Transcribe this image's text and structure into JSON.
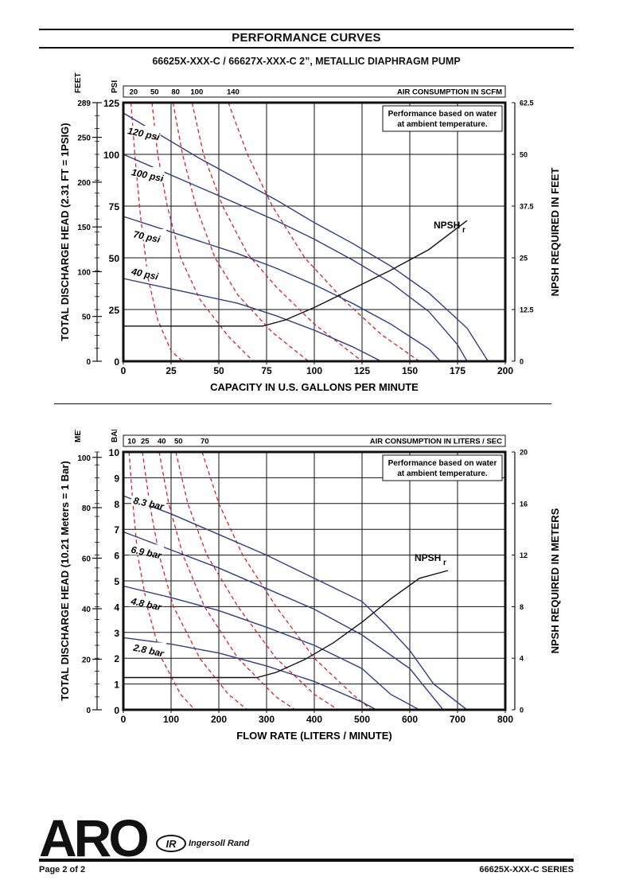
{
  "header": {
    "title": "PERFORMANCE CURVES",
    "subtitle": "66625X-XXX-C / 66627X-XXX-C 2”, METALLIC DIAPHRAGM PUMP"
  },
  "chart_data": [
    {
      "type": "line",
      "xlabel": "CAPACITY IN U.S. GALLONS PER MINUTE",
      "ylabel": "TOTAL DISCHARGE HEAD (2.31 FT = 1PSIG)",
      "y_outer_unit": "FEET",
      "y_inner_unit": "PSI",
      "y2label": "NPSH REQUIRED IN FEET",
      "air_label": "AIR CONSUMPTION IN SCFM",
      "note": [
        "Performance based on water",
        "at ambient temperature."
      ],
      "xlim": [
        0,
        200
      ],
      "ylim": [
        0,
        125
      ],
      "x_ticks": [
        "0",
        "25",
        "50",
        "75",
        "100",
        "125",
        "150",
        "175",
        "200"
      ],
      "y_ticks": [
        "0",
        "25",
        "50",
        "75",
        "100",
        "125"
      ],
      "y_outer_ticks": [
        {
          "v": 0,
          "t": "0"
        },
        {
          "v": 21.65,
          "t": "50"
        },
        {
          "v": 43.3,
          "t": "100"
        },
        {
          "v": 64.94,
          "t": "150"
        },
        {
          "v": 86.58,
          "t": "200"
        },
        {
          "v": 108.23,
          "t": "250"
        },
        {
          "v": 125,
          "t": "289"
        }
      ],
      "y2_ticks": [
        {
          "v": 0,
          "t": "0"
        },
        {
          "v": 25,
          "t": "12.5"
        },
        {
          "v": 50,
          "t": "25"
        },
        {
          "v": 75,
          "t": "37.5"
        },
        {
          "v": 100,
          "t": "50"
        },
        {
          "v": 125,
          "t": "62.5"
        }
      ],
      "air_ticks": [
        {
          "x": 4,
          "t": "20"
        },
        {
          "x": 15,
          "t": "50"
        },
        {
          "x": 26,
          "t": "80"
        },
        {
          "x": 36,
          "t": "100"
        },
        {
          "x": 55,
          "t": "140"
        }
      ],
      "npsh_label": "NPSH",
      "npsh_sub": "r",
      "series": [
        {
          "name": "120 psi",
          "label_xy": [
            2,
            110
          ],
          "points": [
            [
              0,
              120
            ],
            [
              20,
              109
            ],
            [
              40,
              98
            ],
            [
              60,
              88
            ],
            [
              80,
              78
            ],
            [
              100,
              67
            ],
            [
              120,
              57
            ],
            [
              140,
              46
            ],
            [
              160,
              33
            ],
            [
              180,
              16
            ],
            [
              191,
              0
            ]
          ]
        },
        {
          "name": "100 psi",
          "label_xy": [
            4,
            90
          ],
          "points": [
            [
              0,
              100
            ],
            [
              20,
              92
            ],
            [
              40,
              84
            ],
            [
              60,
              76
            ],
            [
              80,
              68
            ],
            [
              100,
              59
            ],
            [
              120,
              49
            ],
            [
              140,
              38
            ],
            [
              160,
              24
            ],
            [
              175,
              8
            ],
            [
              180,
              0
            ]
          ]
        },
        {
          "name": "70 psi",
          "label_xy": [
            5,
            60
          ],
          "points": [
            [
              0,
              70
            ],
            [
              20,
              64
            ],
            [
              40,
              58
            ],
            [
              60,
              52
            ],
            [
              80,
              45
            ],
            [
              100,
              37
            ],
            [
              120,
              28
            ],
            [
              140,
              18
            ],
            [
              160,
              6
            ],
            [
              166,
              0
            ]
          ]
        },
        {
          "name": "40 psi",
          "label_xy": [
            4,
            42
          ],
          "points": [
            [
              0,
              40
            ],
            [
              20,
              36
            ],
            [
              40,
              32
            ],
            [
              60,
              28
            ],
            [
              80,
              22
            ],
            [
              100,
              15
            ],
            [
              120,
              7
            ],
            [
              135,
              0
            ]
          ]
        }
      ],
      "air_curves": [
        {
          "points": [
            [
              4,
              125
            ],
            [
              6,
              100
            ],
            [
              9,
              70
            ],
            [
              13,
              40
            ],
            [
              18,
              20
            ],
            [
              25,
              5
            ],
            [
              31,
              0
            ]
          ]
        },
        {
          "points": [
            [
              15,
              125
            ],
            [
              18,
              100
            ],
            [
              23,
              75
            ],
            [
              30,
              50
            ],
            [
              40,
              30
            ],
            [
              55,
              12
            ],
            [
              68,
              0
            ]
          ]
        },
        {
          "points": [
            [
              26,
              125
            ],
            [
              31,
              100
            ],
            [
              38,
              75
            ],
            [
              48,
              50
            ],
            [
              60,
              32
            ],
            [
              78,
              14
            ],
            [
              97,
              0
            ]
          ]
        },
        {
          "points": [
            [
              36,
              125
            ],
            [
              42,
              100
            ],
            [
              52,
              75
            ],
            [
              65,
              52
            ],
            [
              80,
              36
            ],
            [
              100,
              18
            ],
            [
              125,
              0
            ]
          ]
        },
        {
          "points": [
            [
              55,
              125
            ],
            [
              65,
              100
            ],
            [
              78,
              75
            ],
            [
              95,
              50
            ],
            [
              115,
              30
            ],
            [
              135,
              13
            ],
            [
              155,
              0
            ]
          ]
        }
      ],
      "npsh_curve": {
        "points": [
          [
            0,
            17
          ],
          [
            73,
            17
          ],
          [
            85,
            20
          ],
          [
            100,
            26
          ],
          [
            120,
            35
          ],
          [
            140,
            44
          ],
          [
            160,
            54
          ],
          [
            180,
            68
          ]
        ]
      }
    },
    {
      "type": "line",
      "xlabel": "FLOW RATE (LITERS / MINUTE)",
      "ylabel": "TOTAL DISCHARGE HEAD (10.21 Meters = 1 Bar)",
      "y_outer_unit": "METERS",
      "y_inner_unit": "BAR",
      "y2label": "NPSH REQUIRED IN METERS",
      "air_label": "AIR CONSUMPTION IN LITERS / SEC",
      "note": [
        "Performance based on water",
        "at ambient temperature."
      ],
      "xlim": [
        0,
        800
      ],
      "ylim": [
        0,
        10
      ],
      "x_ticks": [
        "0",
        "100",
        "200",
        "300",
        "400",
        "500",
        "600",
        "700",
        "800"
      ],
      "y_ticks": [
        "0",
        "1",
        "2",
        "3",
        "4",
        "5",
        "6",
        "7",
        "8",
        "9",
        "10"
      ],
      "y_outer_ticks": [
        {
          "v": 0,
          "t": "0"
        },
        {
          "v": 1.96,
          "t": "20"
        },
        {
          "v": 3.92,
          "t": "40"
        },
        {
          "v": 5.88,
          "t": "60"
        },
        {
          "v": 7.84,
          "t": "80"
        },
        {
          "v": 9.79,
          "t": "100"
        }
      ],
      "y2_ticks": [
        {
          "v": 0,
          "t": "0"
        },
        {
          "v": 2,
          "t": "4"
        },
        {
          "v": 4,
          "t": "8"
        },
        {
          "v": 6,
          "t": "12"
        },
        {
          "v": 8,
          "t": "16"
        },
        {
          "v": 10,
          "t": "20"
        }
      ],
      "air_ticks": [
        {
          "x": 12,
          "t": "10"
        },
        {
          "x": 40,
          "t": "25"
        },
        {
          "x": 75,
          "t": "40"
        },
        {
          "x": 110,
          "t": "50"
        },
        {
          "x": 165,
          "t": "70"
        }
      ],
      "npsh_label": "NPSH",
      "npsh_sub": "r",
      "series": [
        {
          "name": "8.3 bar",
          "label_xy": [
            20,
            8.0
          ],
          "points": [
            [
              0,
              8.3
            ],
            [
              100,
              7.6
            ],
            [
              200,
              6.8
            ],
            [
              300,
              6.0
            ],
            [
              400,
              5.1
            ],
            [
              500,
              4.2
            ],
            [
              550,
              3.3
            ],
            [
              600,
              2.3
            ],
            [
              650,
              1.0
            ],
            [
              720,
              0
            ]
          ]
        },
        {
          "name": "6.9 bar",
          "label_xy": [
            15,
            6.1
          ],
          "points": [
            [
              0,
              6.9
            ],
            [
              100,
              6.2
            ],
            [
              200,
              5.5
            ],
            [
              300,
              4.7
            ],
            [
              400,
              3.9
            ],
            [
              500,
              2.9
            ],
            [
              600,
              1.6
            ],
            [
              670,
              0
            ]
          ]
        },
        {
          "name": "4.8 bar",
          "label_xy": [
            15,
            4.1
          ],
          "points": [
            [
              0,
              4.8
            ],
            [
              100,
              4.35
            ],
            [
              200,
              3.85
            ],
            [
              300,
              3.2
            ],
            [
              400,
              2.5
            ],
            [
              500,
              1.6
            ],
            [
              560,
              0.6
            ],
            [
              620,
              0
            ]
          ]
        },
        {
          "name": "2.8 bar",
          "label_xy": [
            20,
            2.3
          ],
          "points": [
            [
              0,
              2.8
            ],
            [
              100,
              2.55
            ],
            [
              200,
              2.2
            ],
            [
              300,
              1.7
            ],
            [
              400,
              1.1
            ],
            [
              500,
              0.3
            ],
            [
              530,
              0
            ]
          ]
        }
      ],
      "air_curves": [
        {
          "points": [
            [
              12,
              10
            ],
            [
              20,
              8
            ],
            [
              30,
              6
            ],
            [
              50,
              4
            ],
            [
              80,
              2
            ],
            [
              120,
              0.6
            ],
            [
              150,
              0
            ]
          ]
        },
        {
          "points": [
            [
              40,
              10
            ],
            [
              55,
              8
            ],
            [
              75,
              6
            ],
            [
              105,
              4
            ],
            [
              160,
              2
            ],
            [
              220,
              0.6
            ],
            [
              260,
              0
            ]
          ]
        },
        {
          "points": [
            [
              75,
              10
            ],
            [
              95,
              8
            ],
            [
              125,
              6
            ],
            [
              170,
              4
            ],
            [
              240,
              2
            ],
            [
              320,
              0.5
            ],
            [
              360,
              0
            ]
          ]
        },
        {
          "points": [
            [
              110,
              10
            ],
            [
              135,
              8
            ],
            [
              175,
              6
            ],
            [
              240,
              4
            ],
            [
              320,
              2
            ],
            [
              400,
              0.6
            ],
            [
              450,
              0
            ]
          ]
        },
        {
          "points": [
            [
              165,
              10
            ],
            [
              200,
              8
            ],
            [
              250,
              6
            ],
            [
              320,
              4
            ],
            [
              400,
              2
            ],
            [
              480,
              0.6
            ],
            [
              520,
              0
            ]
          ]
        }
      ],
      "npsh_curve": {
        "points": [
          [
            0,
            1.25
          ],
          [
            280,
            1.25
          ],
          [
            320,
            1.45
          ],
          [
            380,
            1.95
          ],
          [
            440,
            2.6
          ],
          [
            500,
            3.4
          ],
          [
            560,
            4.3
          ],
          [
            620,
            5.1
          ],
          [
            680,
            5.4
          ]
        ]
      }
    }
  ],
  "logo": {
    "brand": "ARO",
    "ir_badge": "IR",
    "partner": "Ingersoll Rand"
  },
  "footer": {
    "page": "Page 2 of 2",
    "series": "66625X-XXX-C SERIES"
  },
  "colors": {
    "curve": "#2b3f8c",
    "air": "#d0262c",
    "ink": "#111111"
  }
}
